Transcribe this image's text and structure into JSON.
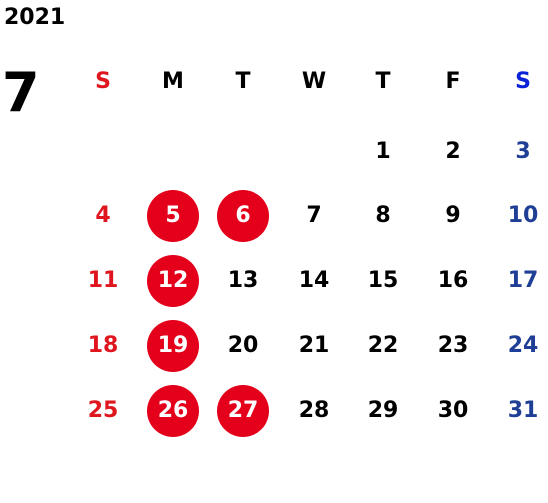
{
  "calendar": {
    "year": "2021",
    "month": "7",
    "weekday_headers": [
      "S",
      "M",
      "T",
      "W",
      "T",
      "F",
      "S"
    ],
    "colors": {
      "sunday": "#e0161f",
      "saturday": "#1f3f96",
      "saturday_header": "#0b22d6",
      "holiday_circle": "#e4001b",
      "weekday": "#000000"
    },
    "weeks": [
      [
        "",
        "",
        "",
        "",
        "1",
        "2",
        "3"
      ],
      [
        "4",
        "5",
        "6",
        "7",
        "8",
        "9",
        "10"
      ],
      [
        "11",
        "12",
        "13",
        "14",
        "15",
        "16",
        "17"
      ],
      [
        "18",
        "19",
        "20",
        "21",
        "22",
        "23",
        "24"
      ],
      [
        "25",
        "26",
        "27",
        "28",
        "29",
        "30",
        "31"
      ]
    ],
    "highlighted_days": [
      "5",
      "6",
      "12",
      "19",
      "26",
      "27"
    ]
  }
}
